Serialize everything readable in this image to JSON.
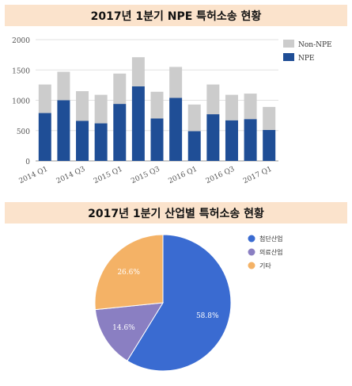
{
  "chart_data": [
    {
      "type": "bar",
      "stacked": true,
      "title": "2017년 1분기 NPE 특허소송 현황",
      "categories": [
        "2014 Q1",
        "2014 Q2",
        "2014 Q3",
        "2014 Q4",
        "2015 Q1",
        "2015 Q2",
        "2015 Q3",
        "2015 Q4",
        "2016 Q1",
        "2016 Q2",
        "2016 Q3",
        "2016 Q4",
        "2017 Q1"
      ],
      "tick_labels": {
        "2014 Q1": "2014 Q1",
        "2014 Q3": "2014 Q3",
        "2015 Q1": "2015 Q1",
        "2015 Q3": "2015 Q3",
        "2016 Q1": "2016 Q1",
        "2016 Q3": "2016 Q3",
        "2017 Q1": "2017 Q1"
      },
      "series": [
        {
          "name": "NPE",
          "color": "#1f4e96",
          "values": [
            790,
            1000,
            660,
            620,
            940,
            1230,
            700,
            1040,
            490,
            770,
            670,
            690,
            510
          ]
        },
        {
          "name": "Non-NPE",
          "color": "#cccccc",
          "values": [
            470,
            470,
            490,
            470,
            500,
            480,
            440,
            510,
            440,
            490,
            420,
            420,
            380
          ]
        }
      ],
      "ylim": [
        0,
        2000
      ],
      "yticks": [
        "0",
        "500",
        "1000",
        "1500",
        "2000"
      ],
      "grid": true,
      "legend_position": "top-right"
    },
    {
      "type": "pie",
      "title": "2017년 1분기 산업별 특허소송 현황",
      "slices": [
        {
          "name": "첨단산업",
          "value": 58.8,
          "label": "58.8%",
          "color": "#3a6bd1"
        },
        {
          "name": "의료산업",
          "value": 14.6,
          "label": "14.6%",
          "color": "#8a7fc2"
        },
        {
          "name": "기타",
          "value": 26.6,
          "label": "26.6%",
          "color": "#f4b266"
        }
      ],
      "legend_position": "top-right"
    }
  ]
}
